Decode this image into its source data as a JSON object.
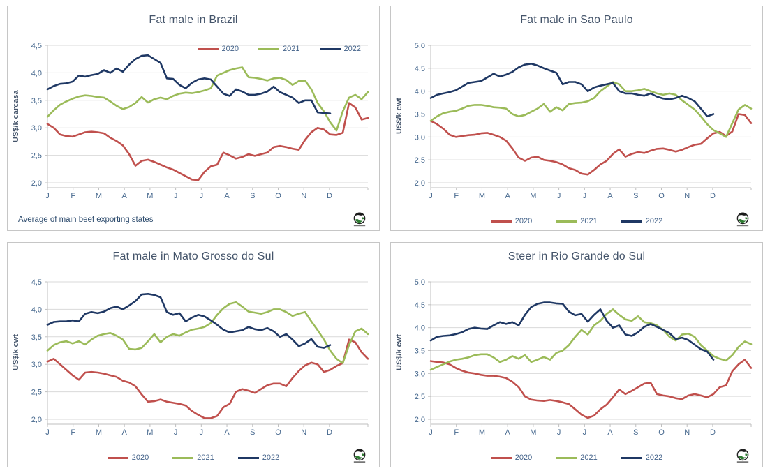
{
  "colors": {
    "series_2020": "#C0504D",
    "series_2021": "#9BBB59",
    "series_2022": "#1F3864",
    "gridline": "#D9D9D9",
    "axis": "#BFBFBF",
    "tick_text": "#46688E",
    "title_text": "#44546A",
    "footnote_text": "#2E4C6E"
  },
  "months": [
    "J",
    "F",
    "M",
    "A",
    "M",
    "J",
    "J",
    "A",
    "S",
    "O",
    "N",
    "D"
  ],
  "footnote": "Average  of main beef exporting states",
  "chart_data": [
    {
      "type": "line",
      "title": "Fat male in Brazil",
      "ylabel": "US$/k carcasa",
      "ylim": [
        2.0,
        4.5
      ],
      "ystep": 0.5,
      "ytick_labels": [
        "4,5",
        "4,0",
        "3,5",
        "3,0",
        "2,5",
        "2,0"
      ],
      "x_tick_labels": [
        "J",
        "F",
        "M",
        "A",
        "M",
        "J",
        "J",
        "A",
        "S",
        "O",
        "N",
        "D"
      ],
      "grid": true,
      "legend_position": "top-right",
      "footnote": "Average  of main beef exporting states",
      "series": [
        {
          "name": "2020",
          "color": "#C0504D",
          "values": [
            3.07,
            3.0,
            2.88,
            2.85,
            2.84,
            2.88,
            2.92,
            2.93,
            2.92,
            2.9,
            2.82,
            2.76,
            2.68,
            2.52,
            2.31,
            2.4,
            2.42,
            2.38,
            2.33,
            2.28,
            2.24,
            2.18,
            2.12,
            2.06,
            2.05,
            2.2,
            2.3,
            2.33,
            2.55,
            2.5,
            2.44,
            2.47,
            2.52,
            2.49,
            2.52,
            2.55,
            2.65,
            2.67,
            2.65,
            2.62,
            2.6,
            2.78,
            2.92,
            3.0,
            2.97,
            2.88,
            2.87,
            2.91,
            3.45,
            3.37,
            3.15,
            3.18
          ]
        },
        {
          "name": "2021",
          "color": "#9BBB59",
          "values": [
            3.2,
            3.32,
            3.42,
            3.48,
            3.53,
            3.57,
            3.59,
            3.58,
            3.56,
            3.55,
            3.48,
            3.4,
            3.34,
            3.38,
            3.45,
            3.56,
            3.46,
            3.52,
            3.55,
            3.52,
            3.58,
            3.62,
            3.64,
            3.63,
            3.65,
            3.68,
            3.72,
            3.95,
            4.0,
            4.05,
            4.08,
            4.1,
            3.92,
            3.91,
            3.89,
            3.86,
            3.9,
            3.91,
            3.87,
            3.78,
            3.85,
            3.86,
            3.7,
            3.45,
            3.3,
            3.1,
            2.95,
            3.3,
            3.55,
            3.6,
            3.52,
            3.65
          ]
        },
        {
          "name": "2022",
          "color": "#1F3864",
          "values": [
            3.7,
            3.76,
            3.8,
            3.81,
            3.84,
            3.95,
            3.93,
            3.96,
            3.98,
            4.05,
            4.0,
            4.08,
            4.02,
            4.15,
            4.25,
            4.31,
            4.32,
            4.25,
            4.18,
            3.9,
            3.89,
            3.78,
            3.72,
            3.82,
            3.88,
            3.9,
            3.88,
            3.75,
            3.62,
            3.58,
            3.7,
            3.66,
            3.6,
            3.6,
            3.62,
            3.66,
            3.75,
            3.65,
            3.6,
            3.55,
            3.45,
            3.5,
            3.5,
            3.28,
            3.27,
            3.26
          ]
        }
      ]
    },
    {
      "type": "line",
      "title": "Fat male in Sao Paulo",
      "ylabel": "US$/k cwt",
      "ylim": [
        2.0,
        5.0
      ],
      "ystep": 0.5,
      "ytick_labels": [
        "5,0",
        "4,5",
        "4,0",
        "3,5",
        "3,0",
        "2,5",
        "2,0"
      ],
      "x_tick_labels": [
        "J",
        "F",
        "M",
        "A",
        "M",
        "J",
        "J",
        "A",
        "S",
        "O",
        "N",
        "D"
      ],
      "grid": true,
      "legend_position": "bottom",
      "series": [
        {
          "name": "2020",
          "color": "#C0504D",
          "values": [
            3.35,
            3.28,
            3.18,
            3.05,
            3.0,
            3.02,
            3.04,
            3.05,
            3.08,
            3.09,
            3.05,
            3.0,
            2.92,
            2.75,
            2.55,
            2.48,
            2.55,
            2.57,
            2.5,
            2.48,
            2.45,
            2.4,
            2.32,
            2.28,
            2.2,
            2.18,
            2.28,
            2.4,
            2.48,
            2.63,
            2.73,
            2.57,
            2.63,
            2.67,
            2.65,
            2.7,
            2.74,
            2.75,
            2.72,
            2.68,
            2.72,
            2.78,
            2.83,
            2.85,
            2.97,
            3.08,
            3.11,
            3.02,
            3.12,
            3.5,
            3.48,
            3.3
          ]
        },
        {
          "name": "2021",
          "color": "#9BBB59",
          "values": [
            3.35,
            3.45,
            3.52,
            3.55,
            3.57,
            3.62,
            3.68,
            3.7,
            3.7,
            3.68,
            3.65,
            3.64,
            3.62,
            3.5,
            3.45,
            3.48,
            3.55,
            3.62,
            3.72,
            3.55,
            3.65,
            3.58,
            3.72,
            3.74,
            3.75,
            3.78,
            3.85,
            4.0,
            4.1,
            4.2,
            4.15,
            4.0,
            4.0,
            4.02,
            4.05,
            4.0,
            3.95,
            3.92,
            3.95,
            3.92,
            3.8,
            3.7,
            3.6,
            3.45,
            3.28,
            3.15,
            3.08,
            3.0,
            3.3,
            3.6,
            3.7,
            3.62
          ]
        },
        {
          "name": "2022",
          "color": "#1F3864",
          "values": [
            3.85,
            3.92,
            3.95,
            3.98,
            4.02,
            4.1,
            4.18,
            4.2,
            4.22,
            4.3,
            4.38,
            4.32,
            4.36,
            4.42,
            4.52,
            4.58,
            4.6,
            4.56,
            4.5,
            4.45,
            4.4,
            4.15,
            4.2,
            4.2,
            4.15,
            4.0,
            4.08,
            4.12,
            4.15,
            4.18,
            4.0,
            3.95,
            3.95,
            3.92,
            3.9,
            3.95,
            3.88,
            3.84,
            3.82,
            3.85,
            3.9,
            3.85,
            3.78,
            3.62,
            3.45,
            3.5
          ]
        }
      ]
    },
    {
      "type": "line",
      "title": "Fat male in Mato Grosso do Sul",
      "ylabel": "US$/k cwt",
      "ylim": [
        2.0,
        4.5
      ],
      "ystep": 0.5,
      "ytick_labels": [
        "4,5",
        "4,0",
        "3,5",
        "3,0",
        "2,5",
        "2,0"
      ],
      "x_tick_labels": [
        "J",
        "F",
        "M",
        "A",
        "M",
        "J",
        "J",
        "A",
        "S",
        "O",
        "N",
        "D"
      ],
      "grid": true,
      "legend_position": "bottom",
      "series": [
        {
          "name": "2020",
          "color": "#C0504D",
          "values": [
            3.05,
            3.1,
            3.0,
            2.9,
            2.8,
            2.72,
            2.85,
            2.86,
            2.85,
            2.83,
            2.8,
            2.77,
            2.7,
            2.67,
            2.6,
            2.45,
            2.32,
            2.33,
            2.36,
            2.32,
            2.3,
            2.28,
            2.25,
            2.15,
            2.08,
            2.02,
            2.02,
            2.06,
            2.22,
            2.28,
            2.5,
            2.55,
            2.52,
            2.48,
            2.55,
            2.62,
            2.65,
            2.65,
            2.6,
            2.75,
            2.88,
            2.98,
            3.03,
            3.0,
            2.86,
            2.9,
            2.97,
            3.02,
            3.45,
            3.4,
            3.22,
            3.1
          ]
        },
        {
          "name": "2021",
          "color": "#9BBB59",
          "values": [
            3.25,
            3.35,
            3.4,
            3.42,
            3.38,
            3.42,
            3.36,
            3.45,
            3.52,
            3.55,
            3.57,
            3.52,
            3.45,
            3.28,
            3.27,
            3.3,
            3.42,
            3.55,
            3.4,
            3.5,
            3.55,
            3.52,
            3.58,
            3.63,
            3.65,
            3.68,
            3.75,
            3.9,
            4.02,
            4.1,
            4.13,
            4.05,
            3.96,
            3.94,
            3.92,
            3.95,
            4.0,
            4.0,
            3.95,
            3.88,
            3.92,
            3.95,
            3.78,
            3.62,
            3.45,
            3.25,
            3.1,
            3.02,
            3.35,
            3.6,
            3.65,
            3.55
          ]
        },
        {
          "name": "2022",
          "color": "#1F3864",
          "values": [
            3.72,
            3.77,
            3.78,
            3.78,
            3.8,
            3.78,
            3.92,
            3.95,
            3.93,
            3.96,
            4.02,
            4.05,
            4.0,
            4.07,
            4.15,
            4.27,
            4.28,
            4.26,
            4.22,
            3.95,
            3.9,
            3.93,
            3.78,
            3.85,
            3.9,
            3.87,
            3.8,
            3.72,
            3.63,
            3.58,
            3.6,
            3.62,
            3.68,
            3.64,
            3.62,
            3.66,
            3.6,
            3.5,
            3.55,
            3.45,
            3.33,
            3.38,
            3.46,
            3.32,
            3.3,
            3.35
          ]
        }
      ]
    },
    {
      "type": "line",
      "title": "Steer  in Rio Grande do Sul",
      "ylabel": "US$/k cwt",
      "ylim": [
        2.0,
        5.0
      ],
      "ystep": 0.5,
      "ytick_labels": [
        "5,0",
        "4,5",
        "4,0",
        "3,5",
        "3,0",
        "2,5",
        "2,0"
      ],
      "x_tick_labels": [
        "J",
        "F",
        "M",
        "A",
        "M",
        "J",
        "J",
        "A",
        "S",
        "O",
        "N",
        "D"
      ],
      "grid": true,
      "legend_position": "bottom",
      "series": [
        {
          "name": "2020",
          "color": "#C0504D",
          "values": [
            3.27,
            3.25,
            3.24,
            3.2,
            3.12,
            3.06,
            3.02,
            3.0,
            2.97,
            2.95,
            2.95,
            2.93,
            2.9,
            2.82,
            2.7,
            2.5,
            2.43,
            2.41,
            2.4,
            2.42,
            2.4,
            2.37,
            2.33,
            2.22,
            2.1,
            2.03,
            2.08,
            2.22,
            2.32,
            2.48,
            2.65,
            2.55,
            2.62,
            2.7,
            2.78,
            2.8,
            2.55,
            2.52,
            2.5,
            2.46,
            2.44,
            2.52,
            2.55,
            2.52,
            2.48,
            2.55,
            2.7,
            2.74,
            3.05,
            3.2,
            3.3,
            3.12
          ]
        },
        {
          "name": "2021",
          "color": "#9BBB59",
          "values": [
            3.08,
            3.14,
            3.2,
            3.26,
            3.3,
            3.32,
            3.35,
            3.4,
            3.42,
            3.42,
            3.35,
            3.25,
            3.3,
            3.38,
            3.32,
            3.4,
            3.25,
            3.3,
            3.36,
            3.3,
            3.45,
            3.5,
            3.62,
            3.8,
            3.95,
            3.85,
            4.05,
            4.15,
            4.3,
            4.4,
            4.28,
            4.18,
            4.15,
            4.25,
            4.12,
            4.1,
            4.05,
            3.95,
            3.8,
            3.72,
            3.85,
            3.87,
            3.8,
            3.62,
            3.5,
            3.38,
            3.32,
            3.28,
            3.4,
            3.58,
            3.7,
            3.64
          ]
        },
        {
          "name": "2022",
          "color": "#1F3864",
          "values": [
            3.72,
            3.8,
            3.82,
            3.83,
            3.86,
            3.9,
            3.97,
            4.0,
            3.98,
            3.97,
            4.05,
            4.12,
            4.08,
            4.12,
            4.05,
            4.28,
            4.45,
            4.52,
            4.55,
            4.55,
            4.53,
            4.52,
            4.35,
            4.27,
            4.3,
            4.13,
            4.28,
            4.4,
            4.15,
            4.0,
            4.05,
            3.85,
            3.82,
            3.9,
            4.02,
            4.08,
            4.02,
            3.95,
            3.88,
            3.75,
            3.78,
            3.73,
            3.63,
            3.53,
            3.48,
            3.3
          ]
        }
      ]
    }
  ]
}
